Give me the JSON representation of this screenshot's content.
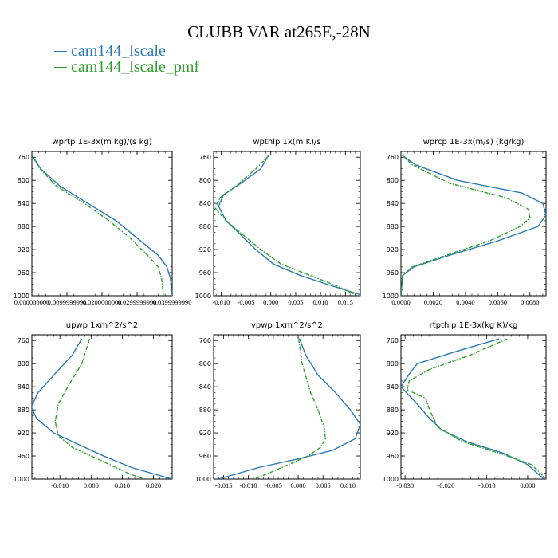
{
  "title": "CLUBB VAR at265E,-28N",
  "colors": {
    "series1": "#2a7ab4",
    "series2": "#2ca02c"
  },
  "legend": [
    {
      "label": "cam144_lscale",
      "color": "#2a7ab4",
      "style": "solid"
    },
    {
      "label": "cam144_lscale_pmf",
      "color": "#2ca02c",
      "style": "dashed"
    }
  ],
  "chart_data": [
    {
      "type": "line",
      "title": "wprtp   1E-3x(m kg)/(s kg)",
      "ylim": [
        1000,
        750
      ],
      "xlim": [
        0.0,
        0.04
      ],
      "yticks": [
        "760",
        "800",
        "840",
        "880",
        "920",
        "960",
        "1000"
      ],
      "xticks": [
        "0.000000000",
        "0.0099999998",
        "0.0200000000",
        "0.0299999990",
        "0.0399999990"
      ],
      "series": [
        {
          "name": "cam144_lscale",
          "x": [
            0.0001,
            0.0025,
            0.008,
            0.016,
            0.024,
            0.03,
            0.036,
            0.0385,
            0.0395,
            0.04
          ],
          "y": [
            757,
            780,
            810,
            840,
            870,
            900,
            930,
            950,
            970,
            1000
          ]
        },
        {
          "name": "cam144_lscale_pmf",
          "x": [
            0.0001,
            0.002,
            0.007,
            0.015,
            0.022,
            0.028,
            0.033,
            0.036,
            0.037,
            0.0375
          ],
          "y": [
            757,
            778,
            810,
            840,
            870,
            900,
            930,
            950,
            970,
            1000
          ]
        }
      ]
    },
    {
      "type": "line",
      "title": "wpthlp   1x(m K)/s",
      "ylim": [
        1000,
        750
      ],
      "xlim": [
        -0.0115,
        0.018
      ],
      "yticks": [
        "760",
        "800",
        "840",
        "880",
        "920",
        "960",
        "1000"
      ],
      "xticks": [
        "-0.010",
        "-0.005",
        "0.000",
        "0.005",
        "0.010",
        "0.015"
      ],
      "series": [
        {
          "name": "cam144_lscale",
          "x": [
            -0.0005,
            -0.002,
            -0.006,
            -0.0095,
            -0.0105,
            -0.009,
            -0.006,
            -0.003,
            0.0005,
            0.006,
            0.012,
            0.018
          ],
          "y": [
            757,
            780,
            805,
            825,
            845,
            870,
            895,
            920,
            945,
            965,
            982,
            998
          ]
        },
        {
          "name": "cam144_lscale_pmf",
          "x": [
            -0.0004,
            -0.003,
            -0.007,
            -0.0102,
            -0.0112,
            -0.009,
            -0.0055,
            -0.002,
            0.002,
            0.008,
            0.013,
            0.017
          ],
          "y": [
            757,
            780,
            810,
            830,
            848,
            870,
            895,
            920,
            945,
            965,
            982,
            998
          ]
        }
      ]
    },
    {
      "type": "line",
      "title": "wprcp   1E-3x(m/s) (kg/kg)",
      "ylim": [
        1000,
        750
      ],
      "xlim": [
        0.0,
        0.009
      ],
      "yticks": [
        "760",
        "800",
        "840",
        "880",
        "920",
        "960",
        "1000"
      ],
      "xticks": [
        "0.0000",
        "0.0020",
        "0.0040",
        "0.0060",
        "0.0080"
      ],
      "series": [
        {
          "name": "cam144_lscale",
          "x": [
            0.0001,
            0.0009,
            0.0035,
            0.0075,
            0.0088,
            0.009,
            0.0085,
            0.006,
            0.003,
            0.0008,
            0.0001,
            0.0
          ],
          "y": [
            757,
            773,
            800,
            822,
            840,
            860,
            880,
            905,
            930,
            950,
            965,
            1000
          ]
        },
        {
          "name": "cam144_lscale_pmf",
          "x": [
            0.0001,
            0.0007,
            0.003,
            0.0065,
            0.0079,
            0.008,
            0.0074,
            0.0055,
            0.0028,
            0.0007,
            0.0001,
            0.0
          ],
          "y": [
            757,
            773,
            805,
            830,
            850,
            865,
            880,
            905,
            930,
            950,
            965,
            1000
          ]
        }
      ]
    },
    {
      "type": "line",
      "title": "upwp   1xm^2/s^2",
      "ylim": [
        1000,
        750
      ],
      "xlim": [
        -0.019,
        0.026
      ],
      "yticks": [
        "760",
        "800",
        "840",
        "880",
        "920",
        "960",
        "1000"
      ],
      "xticks": [
        "-0.010",
        "0.000",
        "0.010",
        "0.020"
      ],
      "series": [
        {
          "name": "cam144_lscale",
          "x": [
            -0.003,
            -0.006,
            -0.012,
            -0.017,
            -0.0192,
            -0.0175,
            -0.012,
            -0.004,
            0.004,
            0.013,
            0.026
          ],
          "y": [
            757,
            785,
            820,
            850,
            875,
            895,
            920,
            940,
            960,
            980,
            1000
          ]
        },
        {
          "name": "cam144_lscale_pmf",
          "x": [
            -0.0005,
            -0.003,
            -0.0075,
            -0.0105,
            -0.0115,
            -0.0105,
            -0.006,
            0.0,
            0.006,
            0.012,
            0.017
          ],
          "y": [
            757,
            800,
            840,
            870,
            900,
            925,
            945,
            960,
            975,
            990,
            1000
          ]
        }
      ]
    },
    {
      "type": "line",
      "title": "vpwp   1xm^2/s^2",
      "ylim": [
        1000,
        750
      ],
      "xlim": [
        -0.017,
        0.0125
      ],
      "yticks": [
        "760",
        "800",
        "840",
        "880",
        "920",
        "960",
        "1000"
      ],
      "xticks": [
        "-0.015",
        "-0.010",
        "-0.005",
        "0.000",
        "0.005",
        "0.010"
      ],
      "series": [
        {
          "name": "cam144_lscale",
          "x": [
            0.0003,
            0.0015,
            0.004,
            0.0075,
            0.0105,
            0.0125,
            0.0115,
            0.007,
            0.0,
            -0.008,
            -0.016
          ],
          "y": [
            757,
            785,
            820,
            850,
            880,
            905,
            930,
            950,
            965,
            980,
            1000
          ]
        },
        {
          "name": "cam144_lscale_pmf",
          "x": [
            0.0001,
            0.0008,
            0.0025,
            0.004,
            0.0052,
            0.0055,
            0.0045,
            0.002,
            -0.002,
            -0.006,
            -0.009
          ],
          "y": [
            757,
            800,
            850,
            880,
            910,
            930,
            945,
            960,
            975,
            990,
            1000
          ]
        }
      ]
    },
    {
      "type": "line",
      "title": "rtpthlp   1E-3x(kg K)/kg",
      "ylim": [
        1000,
        750
      ],
      "xlim": [
        -0.031,
        0.0045
      ],
      "yticks": [
        "760",
        "800",
        "840",
        "880",
        "920",
        "960",
        "1000"
      ],
      "xticks": [
        "-0.030",
        "-0.020",
        "-0.010",
        "0.000"
      ],
      "series": [
        {
          "name": "cam144_lscale",
          "x": [
            -0.007,
            -0.018,
            -0.027,
            -0.029,
            -0.031,
            -0.027,
            -0.024,
            -0.021,
            -0.015,
            -0.006,
            0.0,
            0.004
          ],
          "y": [
            757,
            780,
            800,
            818,
            840,
            870,
            895,
            915,
            935,
            955,
            975,
            1000
          ]
        },
        {
          "name": "cam144_lscale_pmf",
          "x": [
            -0.005,
            -0.014,
            -0.024,
            -0.029,
            -0.0295,
            -0.025,
            -0.024,
            -0.022,
            -0.016,
            -0.007,
            0.001,
            0.0045
          ],
          "y": [
            757,
            785,
            810,
            830,
            845,
            860,
            880,
            910,
            935,
            955,
            975,
            1000
          ]
        }
      ]
    }
  ]
}
